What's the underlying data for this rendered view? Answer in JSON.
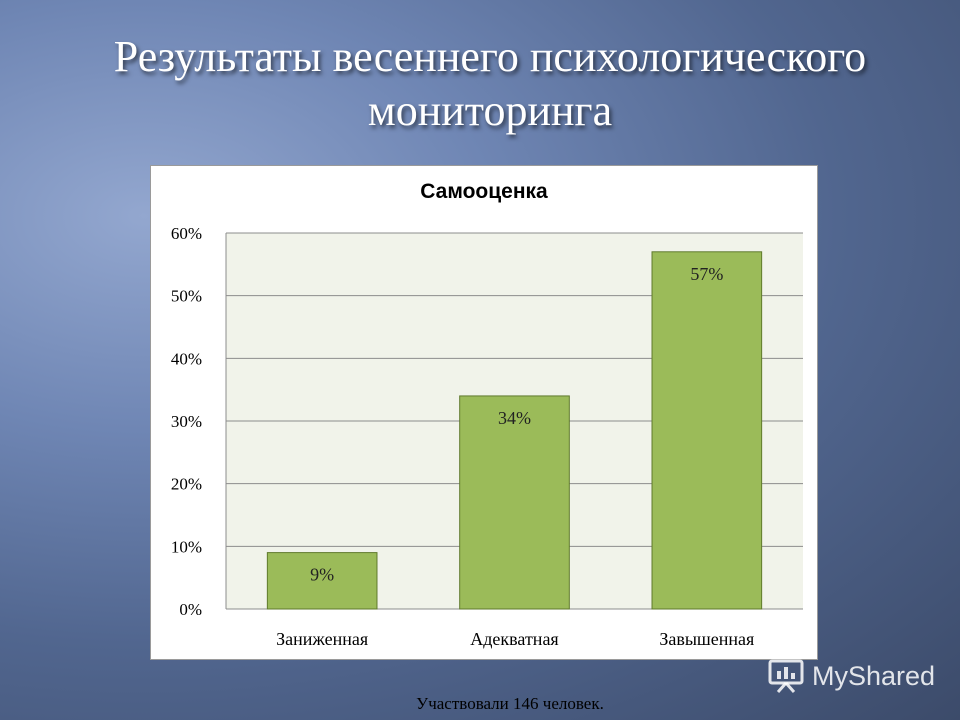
{
  "slide": {
    "title": "Результаты весеннего психологического мониторинга",
    "footnote": "Участвовали 146 человек.",
    "watermark": "MyShared"
  },
  "colors": {
    "bar_fill": "#9bbb59",
    "bar_stroke": "#5f7a2c",
    "plot_bg": "#f1f3ea",
    "gridline": "#8c8c8c"
  },
  "chart_data": {
    "type": "bar",
    "title": "Самооценка",
    "categories": [
      "Заниженная",
      "Адекватная",
      "Завышенная"
    ],
    "values": [
      9,
      34,
      57
    ],
    "data_labels": [
      "9%",
      "34%",
      "57%"
    ],
    "yticks": [
      0,
      10,
      20,
      30,
      40,
      50,
      60
    ],
    "ytick_labels": [
      "0%",
      "10%",
      "20%",
      "30%",
      "40%",
      "50%",
      "60%"
    ],
    "ylim": [
      0,
      60
    ],
    "grid": true,
    "legend": "none"
  }
}
